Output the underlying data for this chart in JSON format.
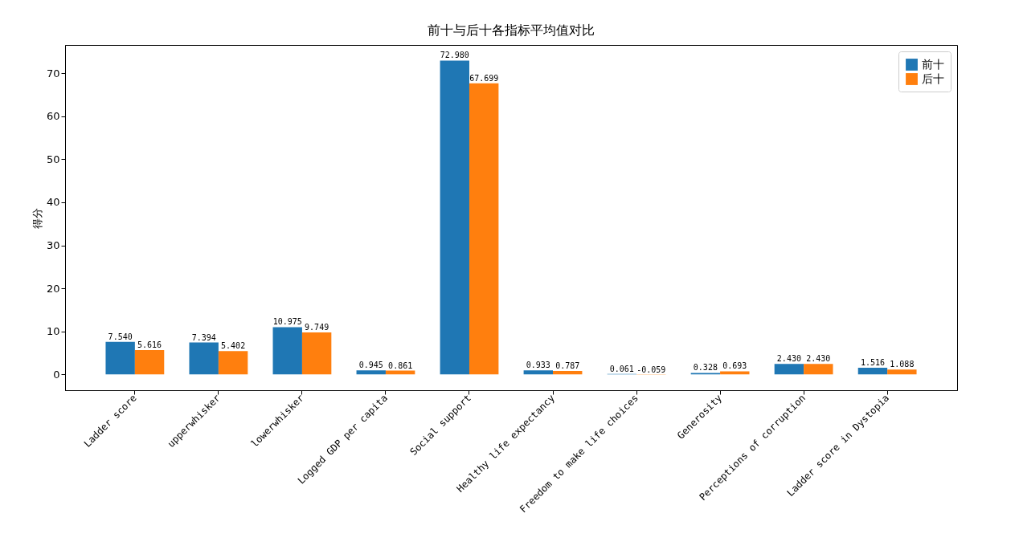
{
  "chart_data": {
    "type": "bar",
    "title": "前十与后十各指标平均值对比",
    "ylabel": "得分",
    "categories": [
      "Ladder score",
      "upperwhisker",
      "lowerwhisker",
      "Logged GDP per capita",
      "Social support",
      "Healthy life expectancy",
      "Freedom to make life choices",
      "Generosity",
      "Perceptions of corruption",
      "Ladder score in Dystopia"
    ],
    "series": [
      {
        "name": "前十",
        "color": "#1f77b4",
        "values": [
          7.54,
          7.394,
          10.975,
          0.945,
          72.98,
          0.933,
          0.061,
          0.328,
          2.43,
          1.516
        ],
        "value_labels": [
          "7.540",
          "7.394",
          "10.975",
          "0.945",
          "72.980",
          "0.933",
          "0.061",
          "0.328",
          "2.430",
          "1.516"
        ]
      },
      {
        "name": "后十",
        "color": "#ff7f0e",
        "values": [
          5.616,
          5.402,
          9.749,
          0.861,
          67.699,
          0.787,
          -0.059,
          0.693,
          2.43,
          1.088
        ],
        "value_labels": [
          "5.616",
          "5.402",
          "9.749",
          "0.861",
          "67.699",
          "0.787",
          "-0.059",
          "0.693",
          "2.430",
          "1.088"
        ]
      }
    ],
    "ylim": [
      -3.7,
      76.6
    ],
    "yticks": [
      0,
      10,
      20,
      30,
      40,
      50,
      60,
      70
    ],
    "grid": false,
    "legend": "top right"
  }
}
